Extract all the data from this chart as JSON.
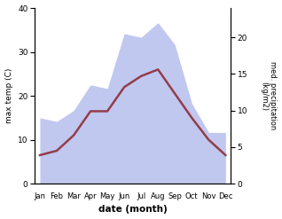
{
  "months": [
    "Jan",
    "Feb",
    "Mar",
    "Apr",
    "May",
    "Jun",
    "Jul",
    "Aug",
    "Sep",
    "Oct",
    "Nov",
    "Dec"
  ],
  "temp_max": [
    6.5,
    7.5,
    11.0,
    16.5,
    16.5,
    22.0,
    24.5,
    26.0,
    20.5,
    15.0,
    10.0,
    6.5
  ],
  "precip": [
    9.0,
    8.5,
    10.0,
    13.5,
    13.0,
    20.5,
    20.0,
    22.0,
    19.0,
    11.0,
    7.0,
    7.0
  ],
  "temp_color": "#943d4b",
  "precip_fill_color": "#c0c8f0",
  "xlabel": "date (month)",
  "ylabel_left": "max temp (C)",
  "ylabel_right": "med. precipitation\n(kg/m2)",
  "ylim_left": [
    0,
    40
  ],
  "ylim_right": [
    0,
    24
  ],
  "yticks_left": [
    0,
    10,
    20,
    30,
    40
  ],
  "yticks_right": [
    0,
    5,
    10,
    15,
    20
  ],
  "bg_color": "#ffffff",
  "line_width": 1.8
}
